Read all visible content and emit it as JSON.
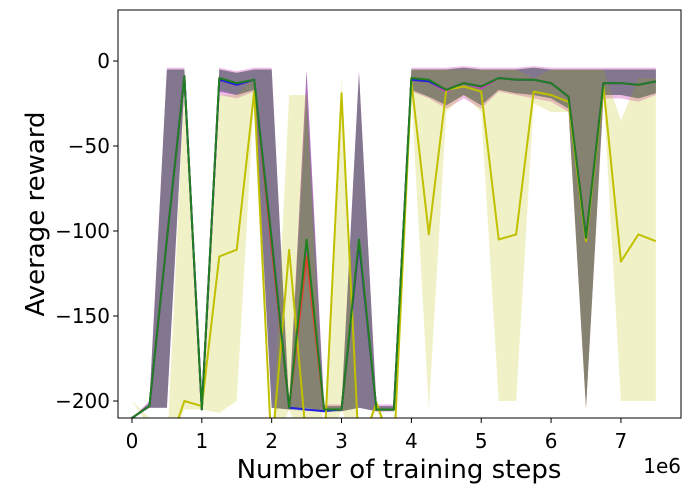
{
  "chart_data": {
    "type": "line",
    "xlabel": "Number of training steps",
    "ylabel": "Average reward",
    "x_offset_label": "1e6",
    "xlim": [
      -0.2,
      7.86
    ],
    "ylim": [
      -210,
      30
    ],
    "x_ticks": [
      0,
      1,
      2,
      3,
      4,
      5,
      6,
      7
    ],
    "x_tick_labels": [
      "0",
      "1",
      "2",
      "3",
      "4",
      "5",
      "6",
      "7"
    ],
    "y_ticks": [
      0,
      -50,
      -100,
      -150,
      -200
    ],
    "y_tick_labels": [
      "0",
      "−50",
      "−100",
      "−150",
      "−200"
    ],
    "grid": false,
    "x": [
      0,
      0.25,
      0.5,
      0.75,
      1.0,
      1.25,
      1.5,
      1.75,
      2.0,
      2.25,
      2.5,
      2.75,
      3.0,
      3.25,
      3.5,
      3.75,
      4.0,
      4.25,
      4.5,
      4.75,
      5.0,
      5.25,
      5.5,
      5.75,
      6.0,
      6.25,
      6.5,
      6.75,
      7.0,
      7.25,
      7.5
    ],
    "series": [
      {
        "color": "#d040c0",
        "fill_opacity": 0.35,
        "mean": [
          -210,
          -203,
          -105,
          -9,
          -205,
          -11,
          -14,
          -11,
          -105,
          -204,
          -108,
          -205,
          -205,
          -107,
          -205,
          -205,
          -11,
          -12,
          -18,
          -13,
          -16,
          -10,
          -11,
          -11,
          -13,
          -21,
          -104,
          -13,
          -13,
          -14,
          -12
        ],
        "lower": [
          -210,
          -204,
          -204,
          -15,
          -206,
          -20,
          -22,
          -18,
          -204,
          -205,
          -204,
          -206,
          -206,
          -204,
          -206,
          -206,
          -18,
          -22,
          -28,
          -22,
          -28,
          -18,
          -20,
          -22,
          -24,
          -30,
          -204,
          -22,
          -22,
          -24,
          -20
        ],
        "upper": [
          -210,
          -200,
          -4,
          -4,
          -202,
          -4,
          -6,
          -4,
          -4,
          -202,
          -5,
          -202,
          -202,
          -6,
          -202,
          -202,
          -4,
          -4,
          -4,
          -3,
          -4,
          -4,
          -4,
          -3,
          -4,
          -4,
          -4,
          -4,
          -4,
          -4,
          -4
        ]
      },
      {
        "color": "#e04030",
        "fill_opacity": 0.3,
        "mean": [
          -210,
          -203,
          -105,
          -9,
          -205,
          -11,
          -14,
          -11,
          -110,
          -204,
          -115,
          -205,
          -205,
          -107,
          -205,
          -205,
          -11,
          -12,
          -17,
          -13,
          -15,
          -10,
          -11,
          -11,
          -13,
          -21,
          -104,
          -13,
          -13,
          -14,
          -12
        ],
        "lower": [
          -210,
          -204,
          -204,
          -14,
          -206,
          -18,
          -20,
          -17,
          -204,
          -205,
          -204,
          -206,
          -206,
          -204,
          -206,
          -206,
          -17,
          -21,
          -26,
          -20,
          -26,
          -17,
          -19,
          -20,
          -22,
          -28,
          -204,
          -20,
          -20,
          -22,
          -19
        ],
        "upper": [
          -210,
          -201,
          -5,
          -5,
          -203,
          -5,
          -7,
          -5,
          -5,
          -203,
          -6,
          -203,
          -203,
          -7,
          -203,
          -203,
          -5,
          -5,
          -5,
          -4,
          -5,
          -5,
          -5,
          -4,
          -5,
          -5,
          -5,
          -5,
          -5,
          -5,
          -5
        ]
      },
      {
        "color": "#2020e0",
        "fill_opacity": 0.3,
        "mean": [
          -210,
          -203,
          -105,
          -9,
          -205,
          -11,
          -14,
          -11,
          -105,
          -204,
          -205,
          -206,
          -205,
          -107,
          -205,
          -205,
          -11,
          -12,
          -17,
          -13,
          -15,
          -10,
          -11,
          -11,
          -13,
          -21,
          -104,
          -13,
          -13,
          -14,
          -12
        ],
        "lower": [
          -210,
          -204,
          -204,
          -14,
          -206,
          -18,
          -20,
          -17,
          -204,
          -205,
          -206,
          -206,
          -206,
          -204,
          -206,
          -206,
          -17,
          -21,
          -26,
          -20,
          -26,
          -17,
          -19,
          -20,
          -22,
          -28,
          -204,
          -20,
          -20,
          -22,
          -19
        ],
        "upper": [
          -210,
          -201,
          -5,
          -5,
          -203,
          -5,
          -7,
          -5,
          -5,
          -203,
          -6,
          -203,
          -203,
          -7,
          -203,
          -203,
          -5,
          -5,
          -5,
          -4,
          -5,
          -5,
          -5,
          -4,
          -5,
          -5,
          -5,
          -5,
          -5,
          -5,
          -5
        ]
      },
      {
        "color": "#c0c000",
        "fill_opacity": 0.22,
        "mean": [
          -210,
          -215,
          -230,
          -200,
          -203,
          -115,
          -111,
          -18,
          -230,
          -111,
          -225,
          -230,
          -19,
          -230,
          -201,
          -230,
          -12,
          -102,
          -17,
          -15,
          -18,
          -105,
          -102,
          -18,
          -20,
          -24,
          -106,
          -15,
          -118,
          -102,
          -106
        ],
        "lower": [
          -200,
          -215,
          -230,
          -205,
          -205,
          -207,
          -200,
          -20,
          -230,
          -205,
          -230,
          -230,
          -205,
          -230,
          -205,
          -230,
          -20,
          -205,
          -30,
          -20,
          -30,
          -200,
          -200,
          -25,
          -30,
          -30,
          -205,
          -20,
          -200,
          -200,
          -200
        ],
        "upper": [
          -200,
          -210,
          -230,
          -15,
          -205,
          -20,
          -20,
          -10,
          -230,
          -20,
          -20,
          -230,
          -10,
          -230,
          -200,
          -230,
          -5,
          -5,
          -5,
          -5,
          -5,
          -5,
          -5,
          -10,
          -5,
          -5,
          -5,
          -5,
          -35,
          -10,
          -10
        ]
      },
      {
        "color": "#208020",
        "fill_opacity": 0.3,
        "mean": [
          -210,
          -203,
          -105,
          -9,
          -205,
          -10,
          -13,
          -11,
          -105,
          -204,
          -105,
          -205,
          -205,
          -105,
          -205,
          -205,
          -10,
          -11,
          -17,
          -13,
          -15,
          -10,
          -11,
          -11,
          -13,
          -21,
          -104,
          -13,
          -13,
          -14,
          -12
        ],
        "lower": [
          -210,
          -204,
          -204,
          -14,
          -206,
          -17,
          -20,
          -17,
          -204,
          -205,
          -204,
          -206,
          -206,
          -204,
          -206,
          -206,
          -17,
          -21,
          -26,
          -20,
          -26,
          -17,
          -19,
          -20,
          -22,
          -28,
          -204,
          -20,
          -20,
          -22,
          -19
        ],
        "upper": [
          -210,
          -201,
          -5,
          -5,
          -203,
          -5,
          -7,
          -5,
          -5,
          -203,
          -20,
          -203,
          -203,
          -7,
          -203,
          -203,
          -5,
          -5,
          -5,
          -4,
          -5,
          -5,
          -5,
          -4,
          -5,
          -5,
          -5,
          -5,
          -5,
          -5,
          -5
        ]
      }
    ]
  }
}
